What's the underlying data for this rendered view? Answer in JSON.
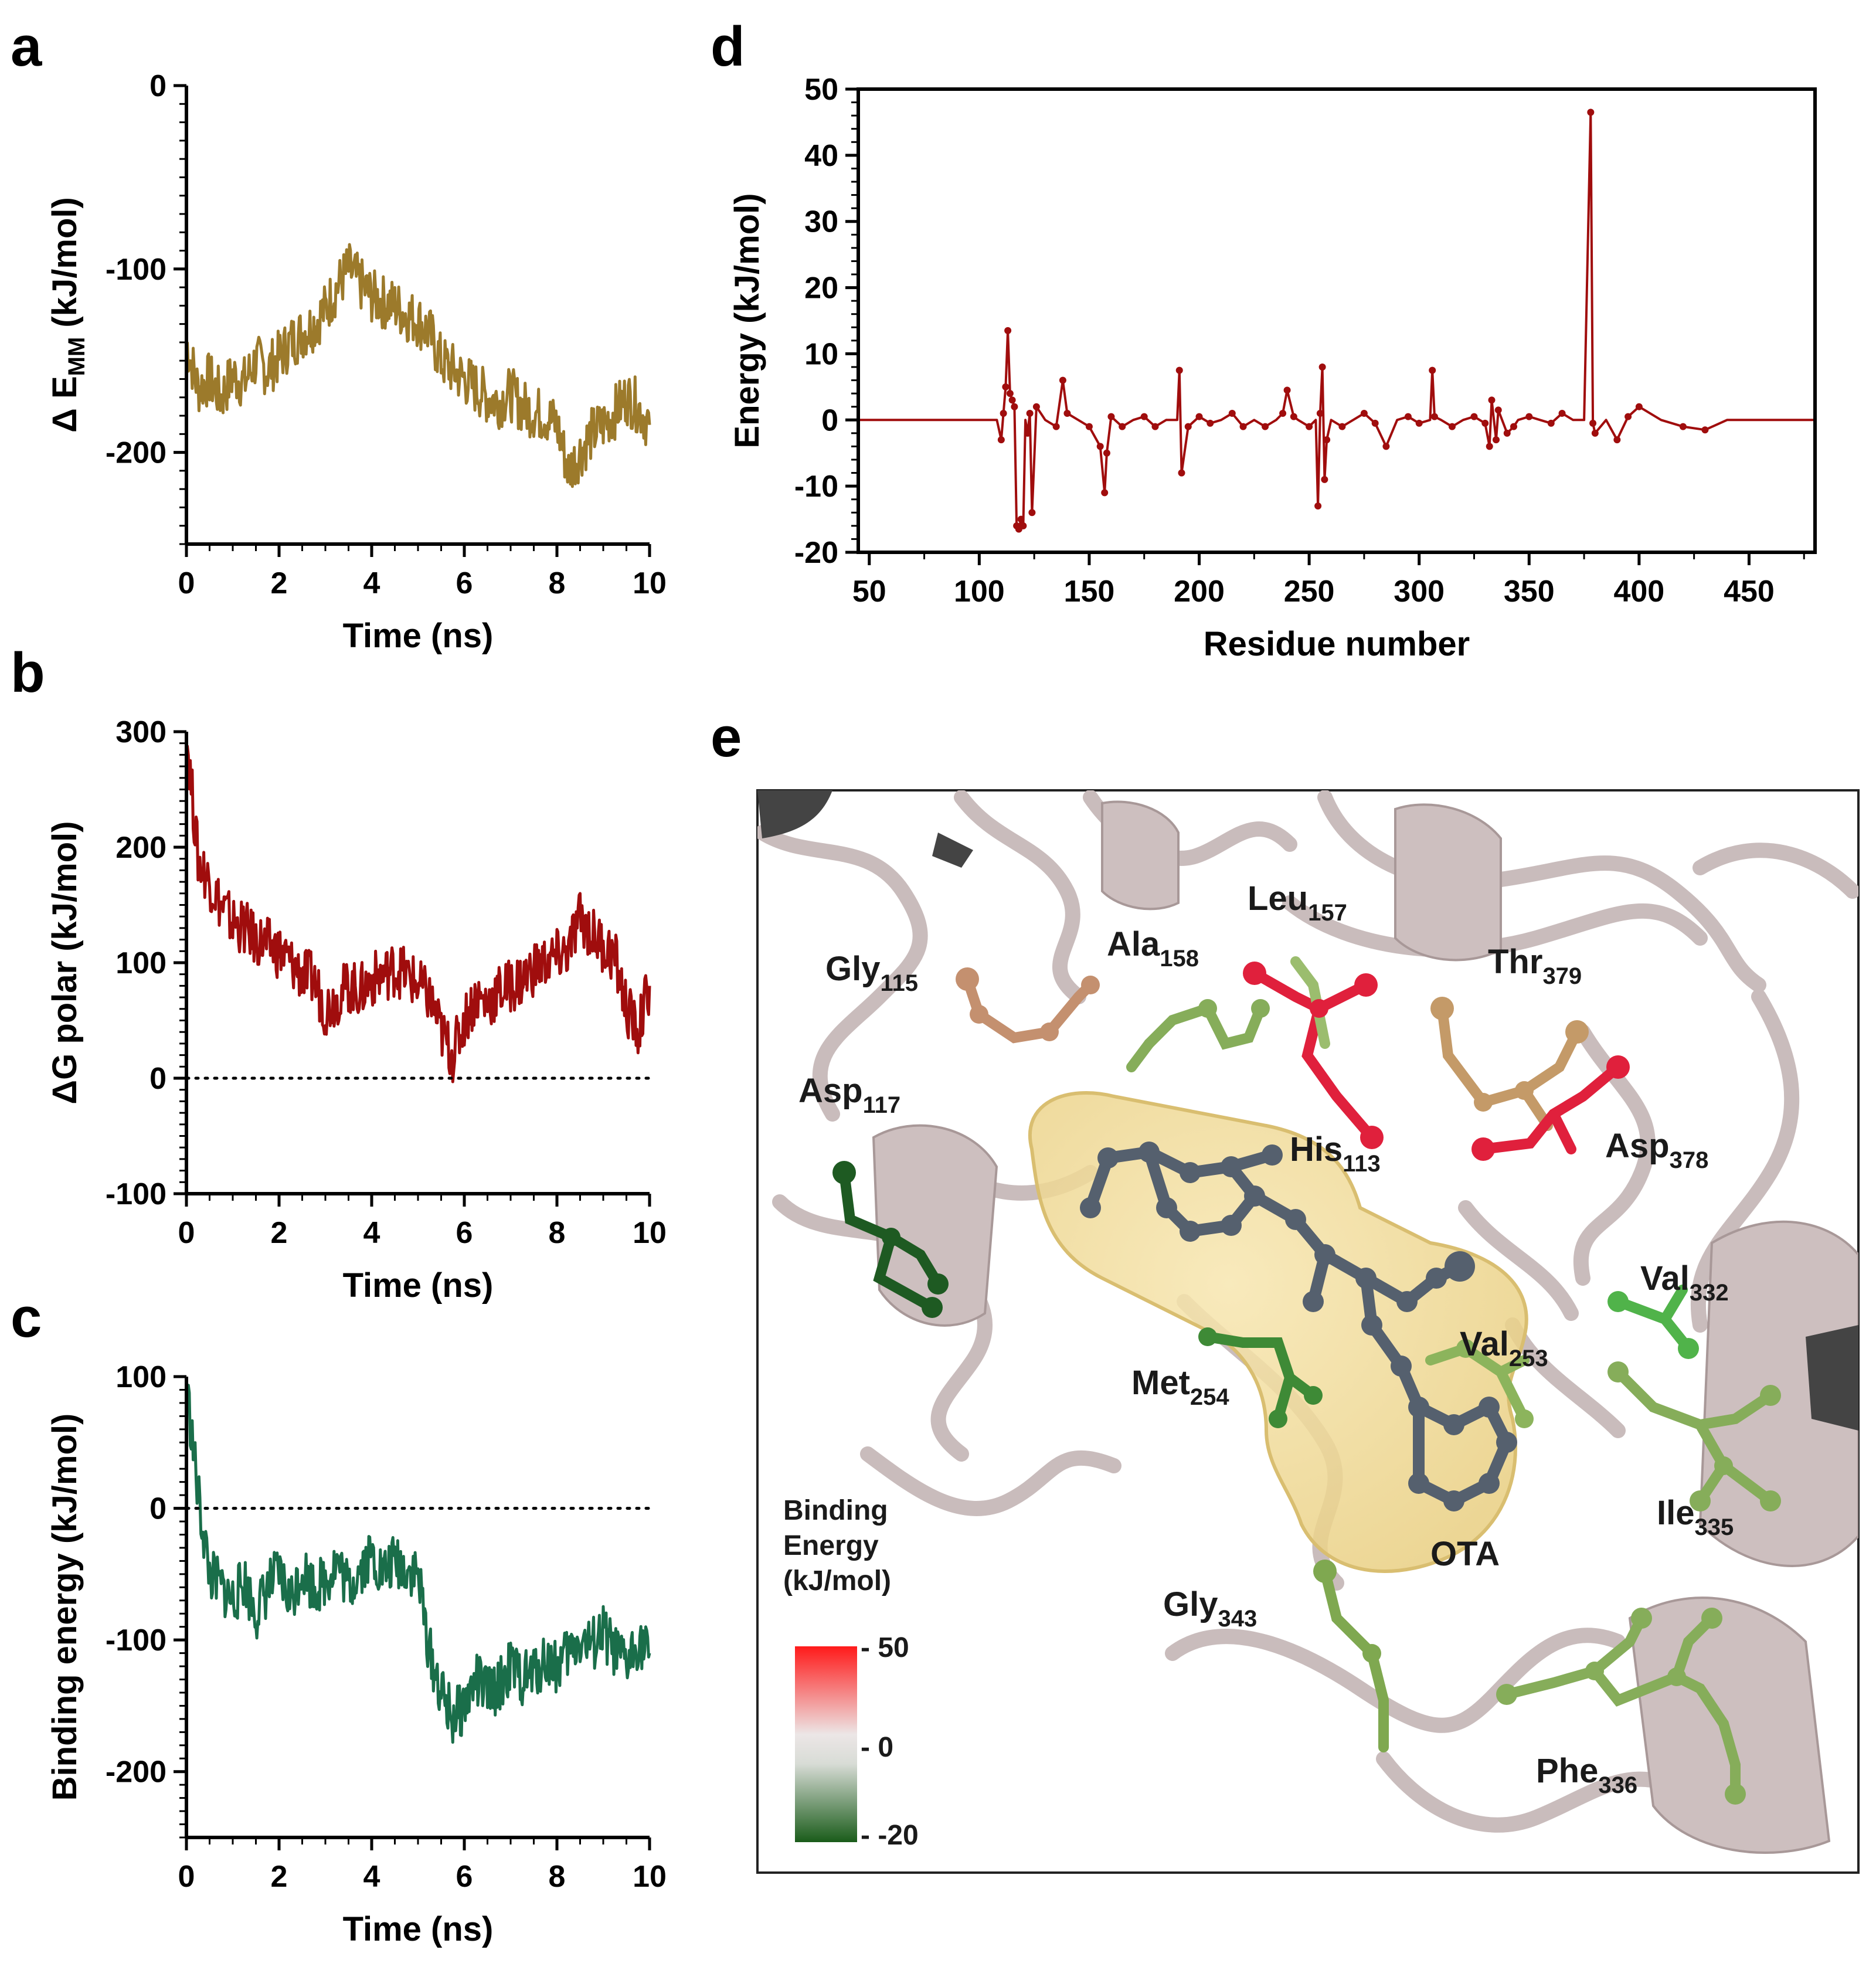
{
  "panels": {
    "a": "a",
    "b": "b",
    "c": "c",
    "d": "d",
    "e": "e"
  },
  "chart_data": [
    {
      "id": "a",
      "type": "line",
      "xlabel": "Time (ns)",
      "ylabel_prefix": "Δ E",
      "ylabel_sub": "MM",
      "ylabel_suffix": " (kJ/mol)",
      "xlim": [
        0,
        10
      ],
      "ylim": [
        -250,
        0
      ],
      "xticks": [
        0,
        2,
        4,
        6,
        8,
        10
      ],
      "yticks": [
        0,
        -100,
        -200
      ],
      "color": "#9c7a2b",
      "x": [
        0,
        0.25,
        0.5,
        0.75,
        1,
        1.25,
        1.5,
        1.75,
        2,
        2.25,
        2.5,
        2.75,
        3,
        3.25,
        3.5,
        3.75,
        4,
        4.25,
        4.5,
        4.75,
        5,
        5.25,
        5.5,
        5.75,
        6,
        6.25,
        6.5,
        6.75,
        7,
        7.25,
        7.5,
        7.75,
        8,
        8.25,
        8.5,
        8.75,
        9,
        9.25,
        9.5,
        9.75,
        10
      ],
      "y": [
        -140,
        -165,
        -160,
        -170,
        -158,
        -162,
        -150,
        -155,
        -148,
        -140,
        -135,
        -130,
        -122,
        -110,
        -100,
        -108,
        -115,
        -118,
        -120,
        -125,
        -128,
        -135,
        -150,
        -155,
        -160,
        -165,
        -170,
        -172,
        -168,
        -175,
        -178,
        -180,
        -185,
        -210,
        -200,
        -190,
        -185,
        -178,
        -170,
        -175,
        -185
      ]
    },
    {
      "id": "b",
      "type": "line",
      "xlabel": "Time (ns)",
      "ylabel": "ΔG polar (kJ/mol)",
      "xlim": [
        0,
        10
      ],
      "ylim": [
        -100,
        300
      ],
      "xticks": [
        0,
        2,
        4,
        6,
        8,
        10
      ],
      "yticks": [
        300,
        200,
        100,
        0,
        -100
      ],
      "reference_line": 0,
      "color": "#a00d0d",
      "x": [
        0,
        0.25,
        0.5,
        0.75,
        1,
        1.25,
        1.5,
        1.75,
        2,
        2.25,
        2.5,
        2.75,
        3,
        3.25,
        3.5,
        3.75,
        4,
        4.25,
        4.5,
        4.75,
        5,
        5.25,
        5.5,
        5.75,
        6,
        6.25,
        6.5,
        6.75,
        7,
        7.25,
        7.5,
        7.75,
        8,
        8.25,
        8.5,
        8.75,
        9,
        9.25,
        9.5,
        9.75,
        10
      ],
      "y": [
        300,
        190,
        170,
        150,
        135,
        130,
        120,
        115,
        110,
        100,
        90,
        85,
        60,
        70,
        80,
        75,
        85,
        90,
        95,
        90,
        80,
        70,
        40,
        20,
        50,
        70,
        65,
        75,
        80,
        85,
        95,
        100,
        105,
        110,
        140,
        125,
        115,
        105,
        60,
        40,
        80
      ]
    },
    {
      "id": "c",
      "type": "line",
      "xlabel": "Time (ns)",
      "ylabel": "Binding energy (kJ/mol)",
      "xlim": [
        0,
        10
      ],
      "ylim": [
        -250,
        100
      ],
      "xticks": [
        0,
        2,
        4,
        6,
        8,
        10
      ],
      "yticks": [
        100,
        0,
        -100,
        -200
      ],
      "reference_line": 0,
      "color": "#1a6e4a",
      "x": [
        0,
        0.25,
        0.5,
        0.75,
        1,
        1.25,
        1.5,
        1.75,
        2,
        2.25,
        2.5,
        2.75,
        3,
        3.25,
        3.5,
        3.75,
        4,
        4.25,
        4.5,
        4.75,
        5,
        5.25,
        5.5,
        5.75,
        6,
        6.25,
        6.5,
        6.75,
        7,
        7.25,
        7.5,
        7.75,
        8,
        8.25,
        8.5,
        8.75,
        9,
        9.25,
        9.5,
        9.75,
        10
      ],
      "y": [
        95,
        10,
        -50,
        -60,
        -70,
        -55,
        -80,
        -60,
        -50,
        -70,
        -45,
        -60,
        -55,
        -40,
        -60,
        -45,
        -35,
        -50,
        -40,
        -45,
        -50,
        -110,
        -140,
        -160,
        -150,
        -130,
        -140,
        -135,
        -120,
        -130,
        -125,
        -115,
        -120,
        -110,
        -100,
        -105,
        -95,
        -110,
        -120,
        -100,
        -110
      ]
    },
    {
      "id": "d",
      "type": "line",
      "xlabel": "Residue number",
      "ylabel": "Energy (kJ/mol)",
      "xlim": [
        45,
        480
      ],
      "ylim": [
        -20,
        50
      ],
      "xticks": [
        50,
        100,
        150,
        200,
        250,
        300,
        350,
        400,
        450
      ],
      "yticks": [
        50,
        40,
        30,
        20,
        10,
        0,
        -10,
        -20
      ],
      "color": "#a00d0d",
      "x": [
        45,
        108,
        110,
        111,
        112,
        113,
        114,
        115,
        116,
        117,
        118,
        119,
        120,
        121,
        122,
        123,
        124,
        126,
        130,
        135,
        138,
        140,
        145,
        150,
        155,
        157,
        158,
        160,
        165,
        170,
        175,
        180,
        185,
        190,
        191,
        192,
        195,
        200,
        205,
        210,
        215,
        220,
        225,
        230,
        235,
        238,
        240,
        243,
        245,
        250,
        253,
        254,
        255,
        256,
        257,
        258,
        260,
        265,
        270,
        275,
        280,
        285,
        290,
        295,
        300,
        305,
        306,
        307,
        310,
        315,
        320,
        325,
        330,
        332,
        333,
        335,
        336,
        340,
        343,
        345,
        350,
        355,
        360,
        365,
        370,
        375,
        378,
        379,
        380,
        385,
        390,
        395,
        400,
        410,
        420,
        430,
        440,
        450,
        460,
        480
      ],
      "y": [
        0,
        0,
        -3,
        1,
        5,
        13.5,
        4,
        3,
        2,
        -16,
        -16.5,
        -15,
        -16,
        0,
        -2,
        1,
        -14,
        2,
        0,
        -1,
        6,
        1,
        0,
        -1,
        -4,
        -11,
        -5,
        0.5,
        -1,
        0,
        0.5,
        -1,
        0,
        0,
        7.5,
        -8,
        -1,
        0.5,
        -0.5,
        0,
        1,
        -1,
        0,
        -1,
        0,
        1,
        4.5,
        0.5,
        0,
        -1,
        0,
        -13,
        1,
        8,
        -9,
        -3,
        0,
        -1,
        0,
        1,
        -0.5,
        -4,
        0,
        0.5,
        -0.5,
        0,
        7.5,
        0.5,
        0,
        -1,
        0,
        0.5,
        -0.5,
        -4,
        3,
        -3,
        1.5,
        -2,
        -1,
        0,
        0.5,
        0,
        -0.5,
        1,
        0,
        0,
        46.5,
        -0.5,
        -2,
        0,
        -3,
        0.5,
        2,
        0,
        -1,
        -1.5,
        0,
        0,
        0,
        0
      ]
    }
  ],
  "structure": {
    "residues": [
      {
        "name": "Gly",
        "num": "115"
      },
      {
        "name": "Ala",
        "num": "158"
      },
      {
        "name": "Leu",
        "num": "157"
      },
      {
        "name": "Thr",
        "num": "379"
      },
      {
        "name": "Asp",
        "num": "117"
      },
      {
        "name": "His",
        "num": "113"
      },
      {
        "name": "Asp",
        "num": "378"
      },
      {
        "name": "Val",
        "num": "332"
      },
      {
        "name": "Val",
        "num": "253"
      },
      {
        "name": "Met",
        "num": "254"
      },
      {
        "name": "Ile",
        "num": "335"
      },
      {
        "name": "Gly",
        "num": "343"
      },
      {
        "name": "Phe",
        "num": "336"
      }
    ],
    "ligand_label": "OTA",
    "legend": {
      "title_lines": [
        "Binding",
        "Energy",
        "(kJ/mol)"
      ],
      "max": "- 50",
      "mid": "- 0",
      "min": "- -20",
      "colors": {
        "high": "#ff1a1a",
        "mid": "#e6e0e0",
        "low": "#1a5c1a"
      }
    }
  }
}
